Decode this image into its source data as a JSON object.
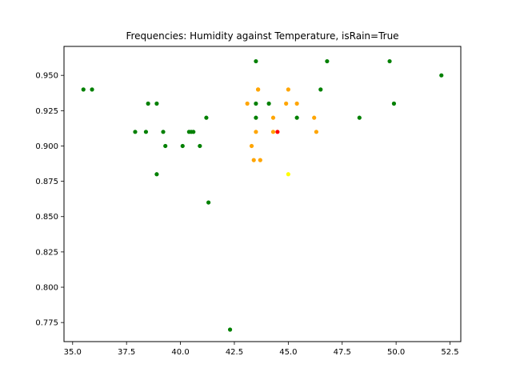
{
  "chart_data": {
    "type": "scatter",
    "title": "Frequencies: Humidity against Temperature, isRain=True",
    "xlabel": "",
    "ylabel": "",
    "xlim": [
      34.6,
      53.0
    ],
    "ylim": [
      0.7615,
      0.9705
    ],
    "x_ticks": [
      35.0,
      37.5,
      40.0,
      42.5,
      45.0,
      47.5,
      50.0,
      52.5
    ],
    "x_tick_labels": [
      "35.0",
      "37.5",
      "40.0",
      "42.5",
      "45.0",
      "47.5",
      "50.0",
      "52.5"
    ],
    "y_ticks": [
      0.775,
      0.8,
      0.825,
      0.85,
      0.875,
      0.9,
      0.925,
      0.95
    ],
    "y_tick_labels": [
      "0.775",
      "0.800",
      "0.825",
      "0.850",
      "0.875",
      "0.900",
      "0.925",
      "0.950"
    ],
    "grid": false,
    "legend": "none",
    "colors": {
      "green": "#008000",
      "orange": "#ffa500",
      "red": "#ff0000",
      "yellow": "#ffff00"
    },
    "points": [
      {
        "x": 35.5,
        "y": 0.94,
        "color": "green"
      },
      {
        "x": 35.9,
        "y": 0.94,
        "color": "green"
      },
      {
        "x": 37.9,
        "y": 0.91,
        "color": "green"
      },
      {
        "x": 38.4,
        "y": 0.91,
        "color": "green"
      },
      {
        "x": 38.5,
        "y": 0.93,
        "color": "green"
      },
      {
        "x": 38.9,
        "y": 0.93,
        "color": "green"
      },
      {
        "x": 38.9,
        "y": 0.88,
        "color": "green"
      },
      {
        "x": 39.2,
        "y": 0.91,
        "color": "green"
      },
      {
        "x": 39.3,
        "y": 0.9,
        "color": "green"
      },
      {
        "x": 40.1,
        "y": 0.9,
        "color": "green"
      },
      {
        "x": 40.4,
        "y": 0.91,
        "color": "green"
      },
      {
        "x": 40.5,
        "y": 0.91,
        "color": "green"
      },
      {
        "x": 40.6,
        "y": 0.91,
        "color": "green"
      },
      {
        "x": 40.9,
        "y": 0.9,
        "color": "green"
      },
      {
        "x": 41.2,
        "y": 0.92,
        "color": "green"
      },
      {
        "x": 41.3,
        "y": 0.86,
        "color": "green"
      },
      {
        "x": 42.3,
        "y": 0.77,
        "color": "green"
      },
      {
        "x": 43.1,
        "y": 0.93,
        "color": "orange"
      },
      {
        "x": 43.3,
        "y": 0.9,
        "color": "orange"
      },
      {
        "x": 43.4,
        "y": 0.89,
        "color": "orange"
      },
      {
        "x": 43.5,
        "y": 0.96,
        "color": "green"
      },
      {
        "x": 43.5,
        "y": 0.93,
        "color": "green"
      },
      {
        "x": 43.5,
        "y": 0.92,
        "color": "green"
      },
      {
        "x": 43.5,
        "y": 0.91,
        "color": "orange"
      },
      {
        "x": 43.6,
        "y": 0.94,
        "color": "orange"
      },
      {
        "x": 43.6,
        "y": 0.94,
        "color": "orange"
      },
      {
        "x": 43.7,
        "y": 0.89,
        "color": "orange"
      },
      {
        "x": 44.1,
        "y": 0.93,
        "color": "green"
      },
      {
        "x": 44.3,
        "y": 0.92,
        "color": "orange"
      },
      {
        "x": 44.3,
        "y": 0.91,
        "color": "orange"
      },
      {
        "x": 44.5,
        "y": 0.91,
        "color": "red"
      },
      {
        "x": 44.9,
        "y": 0.93,
        "color": "orange"
      },
      {
        "x": 45.0,
        "y": 0.94,
        "color": "orange"
      },
      {
        "x": 45.0,
        "y": 0.88,
        "color": "yellow"
      },
      {
        "x": 45.4,
        "y": 0.93,
        "color": "orange"
      },
      {
        "x": 45.4,
        "y": 0.92,
        "color": "green"
      },
      {
        "x": 46.2,
        "y": 0.92,
        "color": "orange"
      },
      {
        "x": 46.3,
        "y": 0.91,
        "color": "orange"
      },
      {
        "x": 46.5,
        "y": 0.94,
        "color": "green"
      },
      {
        "x": 46.8,
        "y": 0.96,
        "color": "green"
      },
      {
        "x": 48.3,
        "y": 0.92,
        "color": "green"
      },
      {
        "x": 49.7,
        "y": 0.96,
        "color": "green"
      },
      {
        "x": 49.9,
        "y": 0.93,
        "color": "green"
      },
      {
        "x": 52.1,
        "y": 0.95,
        "color": "green"
      }
    ]
  }
}
